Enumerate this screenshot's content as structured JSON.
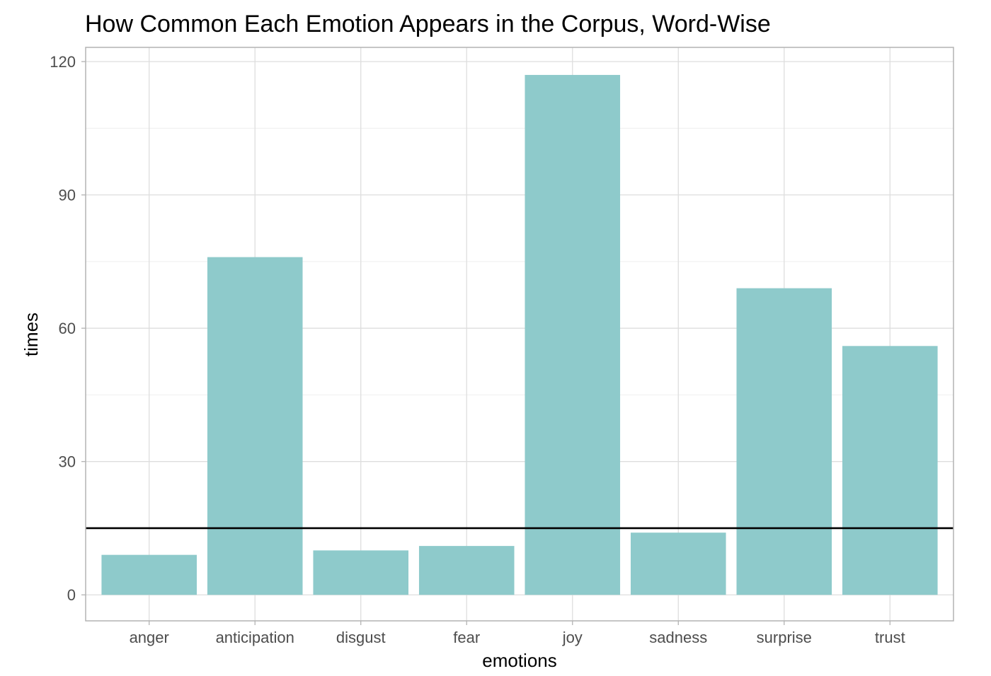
{
  "chart_data": {
    "type": "bar",
    "title": "How Common Each Emotion Appears in the Corpus, Word-Wise",
    "xlabel": "emotions",
    "ylabel": "times",
    "categories": [
      "anger",
      "anticipation",
      "disgust",
      "fear",
      "joy",
      "sadness",
      "surprise",
      "trust"
    ],
    "values": [
      9,
      76,
      10,
      11,
      117,
      14,
      69,
      56
    ],
    "ylim": [
      -5.85,
      123.2
    ],
    "yticks": [
      0,
      30,
      60,
      90,
      120
    ],
    "yticks_minor": [
      15,
      45,
      75,
      105
    ],
    "hline": 15,
    "grid": true,
    "bar_color": "#8ecacb",
    "hline_color": "#000000"
  }
}
